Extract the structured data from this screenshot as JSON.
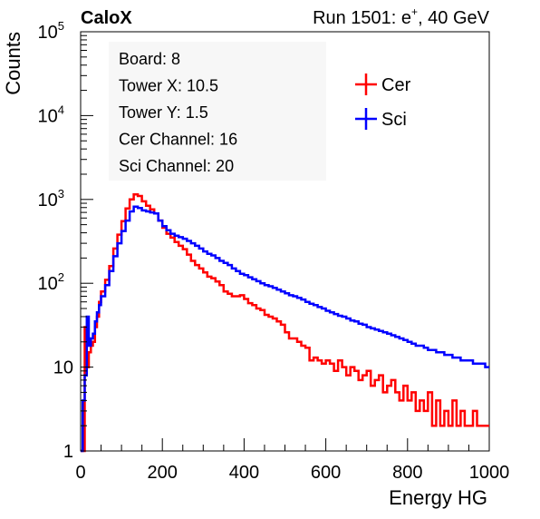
{
  "header": {
    "brand": "CaloX",
    "run_info": "Run 1501: e",
    "run_sup": "+",
    "run_tail": ", 40 GeV"
  },
  "info_box": {
    "lines": [
      "Board: 8",
      "Tower X: 10.5",
      "Tower Y: 1.5",
      "Cer Channel: 16",
      "Sci Channel: 20"
    ]
  },
  "colors": {
    "cer": "#ff0000",
    "sci": "#0000ff"
  },
  "chart_data": {
    "type": "line",
    "style": "step histogram",
    "xlabel": "Energy HG",
    "ylabel": "Counts",
    "xlim": [
      0,
      1000
    ],
    "ylim": [
      1,
      100000
    ],
    "yscale": "log",
    "grid": false,
    "legend_position": "top-right",
    "x_ticks": [
      0,
      200,
      400,
      600,
      800,
      1000
    ],
    "y_ticks": [
      {
        "value": 1,
        "base": "1",
        "exp": ""
      },
      {
        "value": 10,
        "base": "10",
        "exp": ""
      },
      {
        "value": 100,
        "base": "10",
        "exp": "2"
      },
      {
        "value": 1000,
        "base": "10",
        "exp": "3"
      },
      {
        "value": 10000,
        "base": "10",
        "exp": "4"
      },
      {
        "value": 100000,
        "base": "10",
        "exp": "5"
      }
    ],
    "series": [
      {
        "name": "Cer",
        "color": "#ff0000",
        "points": [
          [
            0,
            1
          ],
          [
            5,
            1
          ],
          [
            10,
            30
          ],
          [
            15,
            10
          ],
          [
            20,
            15
          ],
          [
            25,
            18
          ],
          [
            30,
            20
          ],
          [
            35,
            30
          ],
          [
            40,
            40
          ],
          [
            45,
            60
          ],
          [
            50,
            80
          ],
          [
            60,
            110
          ],
          [
            70,
            160
          ],
          [
            80,
            260
          ],
          [
            90,
            380
          ],
          [
            100,
            550
          ],
          [
            110,
            780
          ],
          [
            120,
            1000
          ],
          [
            130,
            1150
          ],
          [
            140,
            1100
          ],
          [
            150,
            950
          ],
          [
            160,
            840
          ],
          [
            170,
            760
          ],
          [
            180,
            680
          ],
          [
            190,
            560
          ],
          [
            200,
            460
          ],
          [
            210,
            390
          ],
          [
            220,
            350
          ],
          [
            230,
            310
          ],
          [
            240,
            280
          ],
          [
            250,
            255
          ],
          [
            260,
            220
          ],
          [
            270,
            185
          ],
          [
            280,
            165
          ],
          [
            290,
            150
          ],
          [
            300,
            135
          ],
          [
            310,
            120
          ],
          [
            320,
            115
          ],
          [
            330,
            105
          ],
          [
            340,
            95
          ],
          [
            350,
            80
          ],
          [
            360,
            75
          ],
          [
            370,
            70
          ],
          [
            380,
            70
          ],
          [
            390,
            72
          ],
          [
            400,
            65
          ],
          [
            410,
            58
          ],
          [
            420,
            55
          ],
          [
            430,
            50
          ],
          [
            440,
            48
          ],
          [
            450,
            42
          ],
          [
            460,
            40
          ],
          [
            470,
            38
          ],
          [
            480,
            35
          ],
          [
            490,
            32
          ],
          [
            500,
            26
          ],
          [
            510,
            22
          ],
          [
            520,
            22
          ],
          [
            530,
            20
          ],
          [
            540,
            18
          ],
          [
            550,
            17
          ],
          [
            560,
            12
          ],
          [
            570,
            13
          ],
          [
            580,
            12
          ],
          [
            590,
            11
          ],
          [
            600,
            12
          ],
          [
            610,
            11
          ],
          [
            620,
            9
          ],
          [
            630,
            12
          ],
          [
            640,
            10
          ],
          [
            650,
            8
          ],
          [
            660,
            10
          ],
          [
            670,
            9
          ],
          [
            680,
            7
          ],
          [
            690,
            8
          ],
          [
            700,
            9
          ],
          [
            710,
            6
          ],
          [
            720,
            7
          ],
          [
            730,
            8
          ],
          [
            740,
            5
          ],
          [
            750,
            6
          ],
          [
            760,
            7
          ],
          [
            770,
            5
          ],
          [
            780,
            4
          ],
          [
            790,
            6
          ],
          [
            800,
            4
          ],
          [
            810,
            5
          ],
          [
            820,
            3
          ],
          [
            830,
            4
          ],
          [
            840,
            3
          ],
          [
            850,
            5
          ],
          [
            860,
            2
          ],
          [
            870,
            4
          ],
          [
            880,
            2
          ],
          [
            890,
            3
          ],
          [
            900,
            2
          ],
          [
            910,
            4
          ],
          [
            920,
            2
          ],
          [
            930,
            3
          ],
          [
            940,
            2
          ],
          [
            950,
            2
          ],
          [
            960,
            3
          ],
          [
            970,
            2
          ],
          [
            980,
            2
          ],
          [
            990,
            2
          ],
          [
            1000,
            2
          ]
        ]
      },
      {
        "name": "Sci",
        "color": "#0000ff",
        "points": [
          [
            0,
            1
          ],
          [
            5,
            4
          ],
          [
            10,
            8
          ],
          [
            15,
            40
          ],
          [
            20,
            18
          ],
          [
            25,
            22
          ],
          [
            30,
            25
          ],
          [
            35,
            35
          ],
          [
            40,
            45
          ],
          [
            45,
            55
          ],
          [
            50,
            70
          ],
          [
            60,
            95
          ],
          [
            70,
            140
          ],
          [
            80,
            210
          ],
          [
            90,
            300
          ],
          [
            100,
            420
          ],
          [
            110,
            560
          ],
          [
            120,
            720
          ],
          [
            130,
            820
          ],
          [
            140,
            790
          ],
          [
            150,
            740
          ],
          [
            160,
            720
          ],
          [
            170,
            700
          ],
          [
            180,
            680
          ],
          [
            190,
            560
          ],
          [
            200,
            480
          ],
          [
            210,
            430
          ],
          [
            220,
            390
          ],
          [
            230,
            370
          ],
          [
            240,
            355
          ],
          [
            250,
            340
          ],
          [
            260,
            320
          ],
          [
            270,
            300
          ],
          [
            280,
            280
          ],
          [
            290,
            260
          ],
          [
            300,
            240
          ],
          [
            310,
            225
          ],
          [
            320,
            215
          ],
          [
            330,
            200
          ],
          [
            340,
            185
          ],
          [
            350,
            175
          ],
          [
            360,
            165
          ],
          [
            370,
            150
          ],
          [
            380,
            140
          ],
          [
            390,
            130
          ],
          [
            400,
            125
          ],
          [
            410,
            118
          ],
          [
            420,
            112
          ],
          [
            430,
            106
          ],
          [
            440,
            100
          ],
          [
            450,
            95
          ],
          [
            460,
            92
          ],
          [
            470,
            88
          ],
          [
            480,
            84
          ],
          [
            490,
            80
          ],
          [
            500,
            76
          ],
          [
            510,
            72
          ],
          [
            520,
            70
          ],
          [
            530,
            67
          ],
          [
            540,
            64
          ],
          [
            550,
            60
          ],
          [
            560,
            57
          ],
          [
            570,
            55
          ],
          [
            580,
            52
          ],
          [
            590,
            50
          ],
          [
            600,
            47
          ],
          [
            610,
            45
          ],
          [
            620,
            43
          ],
          [
            630,
            41
          ],
          [
            640,
            40
          ],
          [
            650,
            38
          ],
          [
            660,
            36
          ],
          [
            670,
            35
          ],
          [
            680,
            33
          ],
          [
            690,
            32
          ],
          [
            700,
            30
          ],
          [
            710,
            29
          ],
          [
            720,
            28
          ],
          [
            730,
            27
          ],
          [
            740,
            26
          ],
          [
            750,
            25
          ],
          [
            760,
            24
          ],
          [
            770,
            23
          ],
          [
            780,
            22
          ],
          [
            790,
            21
          ],
          [
            800,
            20
          ],
          [
            810,
            19
          ],
          [
            820,
            18
          ],
          [
            830,
            18
          ],
          [
            840,
            17
          ],
          [
            850,
            16
          ],
          [
            860,
            16
          ],
          [
            870,
            15
          ],
          [
            880,
            15
          ],
          [
            890,
            14
          ],
          [
            900,
            14
          ],
          [
            910,
            13
          ],
          [
            920,
            13
          ],
          [
            930,
            12
          ],
          [
            940,
            12
          ],
          [
            950,
            12
          ],
          [
            960,
            11
          ],
          [
            970,
            11
          ],
          [
            980,
            11
          ],
          [
            990,
            10
          ],
          [
            1000,
            10
          ]
        ]
      }
    ]
  }
}
